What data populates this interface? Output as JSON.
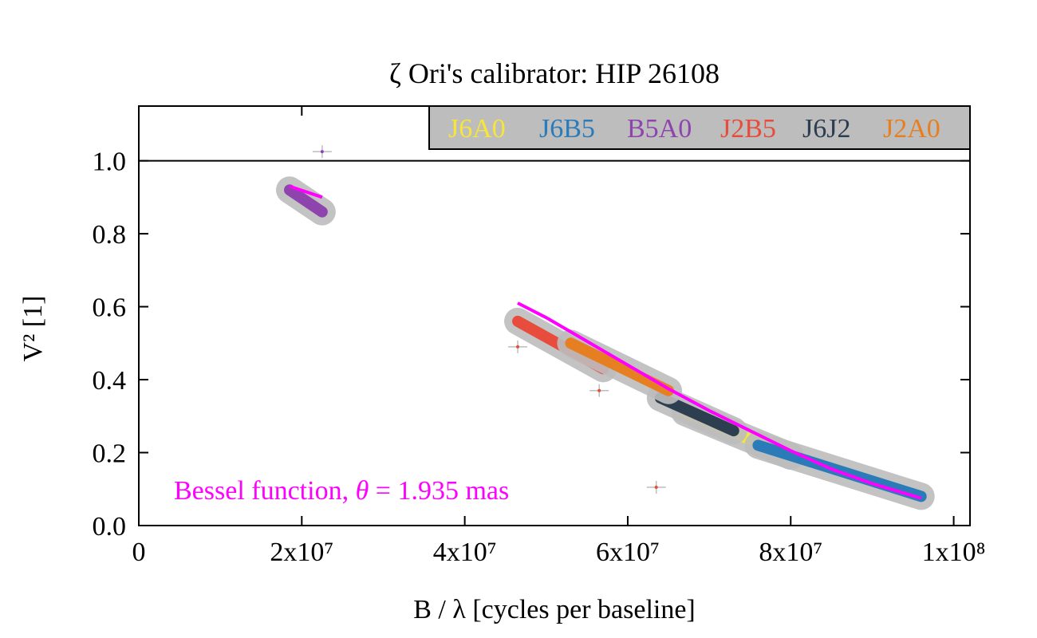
{
  "chart_data": {
    "type": "scatter",
    "title": "ζ Ori's calibrator: HIP 26108",
    "xlabel": "B / λ [cycles per baseline]",
    "ylabel": "V² [1]",
    "xlim": [
      0,
      102000000
    ],
    "ylim": [
      0,
      1.15
    ],
    "x_ticks": [
      {
        "value": 0,
        "label": "0"
      },
      {
        "value": 20000000,
        "label": "2x10⁷"
      },
      {
        "value": 40000000,
        "label": "4x10⁷"
      },
      {
        "value": 60000000,
        "label": "6x10⁷"
      },
      {
        "value": 80000000,
        "label": "8x10⁷"
      },
      {
        "value": 100000000,
        "label": "1x10⁸"
      }
    ],
    "y_ticks": [
      {
        "value": 0.0,
        "label": "0.0"
      },
      {
        "value": 0.2,
        "label": "0.2"
      },
      {
        "value": 0.4,
        "label": "0.4"
      },
      {
        "value": 0.6,
        "label": "0.6"
      },
      {
        "value": 0.8,
        "label": "0.8"
      },
      {
        "value": 1.0,
        "label": "1.0"
      }
    ],
    "reference_line": {
      "y": 1.0,
      "color": "#000000"
    },
    "grid": false,
    "legend_position": "top-right",
    "legend_background": "#bdbdbd",
    "error_bar_color": "#bdbdbd",
    "series": [
      {
        "name": "J6A0",
        "color": "#f7e53a",
        "segments": [
          [
            67000000,
            0.31,
            80000000,
            0.19
          ]
        ],
        "points": []
      },
      {
        "name": "J6B5",
        "color": "#2b7bb9",
        "segments": [
          [
            76000000,
            0.22,
            96000000,
            0.08
          ]
        ],
        "points": []
      },
      {
        "name": "B5A0",
        "color": "#8e44ad",
        "segments": [
          [
            18500000,
            0.92,
            22500000,
            0.86
          ]
        ],
        "points": [
          [
            22500000,
            1.025
          ]
        ]
      },
      {
        "name": "J2B5",
        "color": "#e74c3c",
        "segments": [
          [
            46500000,
            0.56,
            57000000,
            0.43
          ]
        ],
        "points": [
          [
            46500000,
            0.49
          ],
          [
            56500000,
            0.37
          ],
          [
            63500000,
            0.105
          ]
        ]
      },
      {
        "name": "J6J2",
        "color": "#2c3e50",
        "segments": [
          [
            64000000,
            0.35,
            73000000,
            0.26
          ]
        ],
        "points": []
      },
      {
        "name": "J2A0",
        "color": "#e67e22",
        "segments": [
          [
            53000000,
            0.5,
            65000000,
            0.37
          ]
        ],
        "points": []
      }
    ],
    "fit": {
      "label_prefix": "Bessel function, ",
      "theta_symbol": "θ",
      "label_value": " = 1.935 mas",
      "color": "#ff00ff",
      "segments": [
        {
          "x": [
            18500000,
            22500000
          ],
          "y": [
            0.93,
            0.9
          ]
        },
        {
          "x": [
            46500000,
            50000000,
            55000000,
            60000000,
            65000000,
            70000000,
            75000000,
            80000000,
            85000000,
            90000000,
            96000000
          ],
          "y": [
            0.61,
            0.57,
            0.505,
            0.44,
            0.375,
            0.315,
            0.26,
            0.205,
            0.155,
            0.115,
            0.075
          ]
        }
      ]
    }
  }
}
